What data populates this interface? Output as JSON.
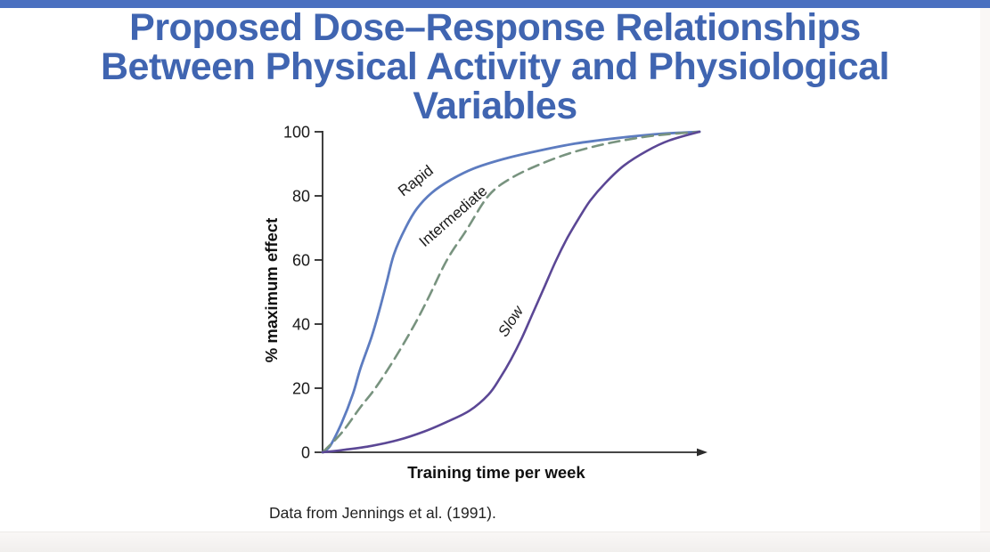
{
  "slide": {
    "title_lines": [
      "Proposed Dose–Response Relationships",
      "Between Physical Activity and Physiological",
      "Variables"
    ],
    "citation": "Data from Jennings et al. (1991).",
    "colors": {
      "accent_bar": "#4a70c0",
      "title_text": "#4065b1"
    }
  },
  "chart_data": {
    "type": "line",
    "title": "",
    "xlabel": "Training time per week",
    "ylabel": "% maximum effect",
    "xlim": [
      0,
      1
    ],
    "ylim": [
      0,
      100
    ],
    "yticks": [
      0,
      20,
      40,
      60,
      80,
      100
    ],
    "xticks": [],
    "grid": false,
    "legend": "inline rotated curve labels",
    "axis_color": "#2b2b2b",
    "x_axis_arrow": true,
    "series": [
      {
        "name": "Rapid",
        "color": "#5d7cc0",
        "dash": false,
        "width": 2.8,
        "italic": false,
        "label_x": 0.255,
        "label_y": 83.5,
        "label_angle": -38,
        "points": [
          [
            0,
            0
          ],
          [
            0.02,
            2
          ],
          [
            0.05,
            9
          ],
          [
            0.08,
            18
          ],
          [
            0.1,
            26
          ],
          [
            0.13,
            36
          ],
          [
            0.15,
            44
          ],
          [
            0.17,
            53
          ],
          [
            0.19,
            62
          ],
          [
            0.22,
            70
          ],
          [
            0.25,
            76
          ],
          [
            0.29,
            81
          ],
          [
            0.34,
            85
          ],
          [
            0.4,
            88.5
          ],
          [
            0.48,
            91.5
          ],
          [
            0.57,
            94
          ],
          [
            0.67,
            96.3
          ],
          [
            0.78,
            98
          ],
          [
            0.89,
            99.3
          ],
          [
            1,
            100
          ]
        ]
      },
      {
        "name": "Intermediate",
        "color": "#78937f",
        "dash": true,
        "width": 2.6,
        "italic": false,
        "label_x": 0.355,
        "label_y": 72.5,
        "label_angle": -41,
        "points": [
          [
            0,
            0
          ],
          [
            0.05,
            6
          ],
          [
            0.1,
            14
          ],
          [
            0.14,
            20
          ],
          [
            0.19,
            29
          ],
          [
            0.24,
            39
          ],
          [
            0.28,
            48
          ],
          [
            0.33,
            60
          ],
          [
            0.38,
            69
          ],
          [
            0.44,
            80
          ],
          [
            0.5,
            85.5
          ],
          [
            0.58,
            90
          ],
          [
            0.67,
            93.8
          ],
          [
            0.77,
            96.7
          ],
          [
            0.88,
            98.8
          ],
          [
            1,
            100
          ]
        ]
      },
      {
        "name": "Slow",
        "color": "#5b4795",
        "dash": false,
        "width": 2.6,
        "italic": true,
        "label_x": 0.51,
        "label_y": 40,
        "label_angle": -57,
        "points": [
          [
            0,
            0
          ],
          [
            0.06,
            0.8
          ],
          [
            0.13,
            2
          ],
          [
            0.2,
            3.8
          ],
          [
            0.27,
            6.5
          ],
          [
            0.33,
            9.5
          ],
          [
            0.39,
            13
          ],
          [
            0.44,
            18
          ],
          [
            0.47,
            23
          ],
          [
            0.5,
            29
          ],
          [
            0.53,
            36
          ],
          [
            0.56,
            44
          ],
          [
            0.59,
            52
          ],
          [
            0.62,
            60
          ],
          [
            0.65,
            67
          ],
          [
            0.68,
            73
          ],
          [
            0.71,
            78.5
          ],
          [
            0.75,
            84
          ],
          [
            0.8,
            89.5
          ],
          [
            0.86,
            94
          ],
          [
            0.92,
            97.3
          ],
          [
            1,
            100
          ]
        ]
      }
    ]
  }
}
